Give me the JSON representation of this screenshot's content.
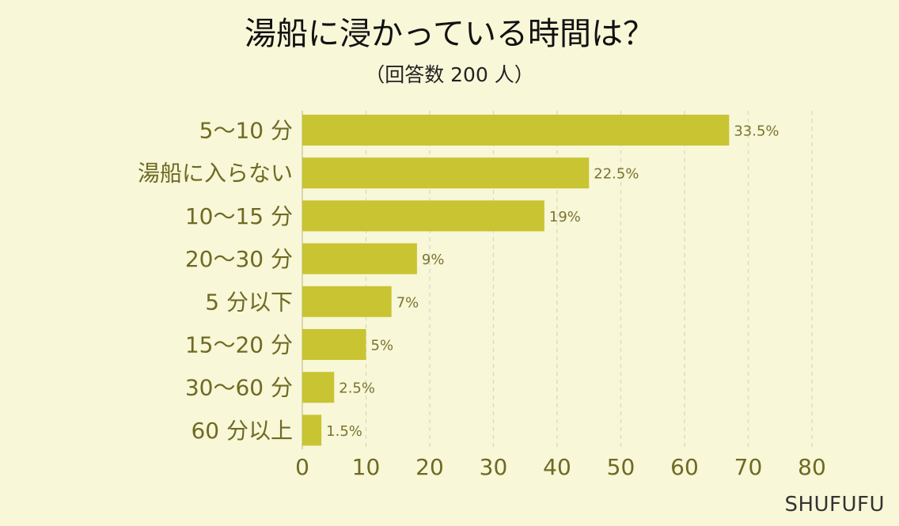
{
  "chart_data": {
    "type": "bar",
    "orientation": "horizontal",
    "title": "湯船に浸かっている時間は？",
    "subtitle": "（回答数 200 人）",
    "categories": [
      "5〜10 分",
      "湯船に入らない",
      "10〜15 分",
      "20〜30 分",
      "5 分以下",
      "15〜20 分",
      "30〜60 分",
      "60 分以上"
    ],
    "values": [
      67,
      45,
      38,
      18,
      14,
      10,
      5,
      3
    ],
    "percent_labels": [
      "33.5%",
      "22.5%",
      "19%",
      "9%",
      "7%",
      "5%",
      "2.5%",
      "1.5%"
    ],
    "xlim": [
      0,
      80
    ],
    "xticks": [
      0,
      10,
      20,
      30,
      40,
      50,
      60,
      70,
      80
    ],
    "grid": true,
    "bar_color": "#c9c432"
  },
  "brand": "SHUFUFU"
}
